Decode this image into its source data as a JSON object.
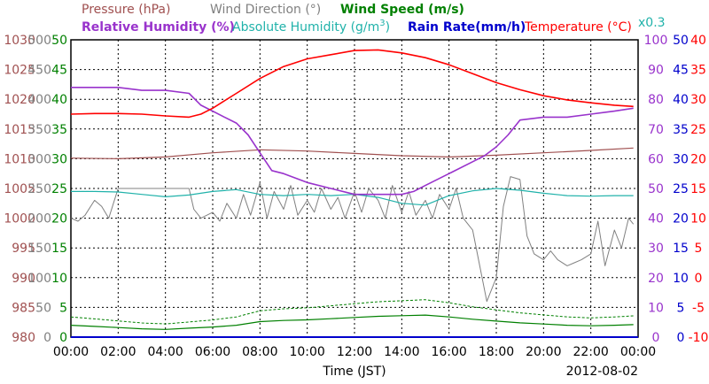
{
  "chart_data": {
    "type": "line",
    "date": "2012-08-02",
    "xlabel": "Time (JST)",
    "x_ticks": [
      "00:00",
      "02:00",
      "04:00",
      "06:00",
      "08:00",
      "10:00",
      "12:00",
      "14:00",
      "16:00",
      "18:00",
      "20:00",
      "22:00",
      "00:00"
    ],
    "x_range_hours": [
      0,
      24
    ],
    "grid": true,
    "legend": {
      "pressure": "Pressure (hPa)",
      "wind_direction": "Wind Direction (°)",
      "wind_speed": "Wind Speed (m/s)",
      "relative_humidity": "Relative Humidity (%)",
      "absolute_humidity": "Absolute Humidity (g/m",
      "absolute_humidity_sup": "3",
      "absolute_humidity_close": ")",
      "rain_rate": "Rain Rate(mm/h)",
      "temperature": "Temperature (°C)",
      "scale_note": "x0.3"
    },
    "axes": {
      "pressure": {
        "ticks": [
          "1030",
          "1025",
          "1020",
          "1015",
          "1010",
          "1005",
          "1000",
          "995",
          "990",
          "985",
          "980"
        ],
        "range": [
          980,
          1030
        ],
        "color": "#a05050"
      },
      "wind_direction": {
        "ticks": [
          "500",
          "450",
          "400",
          "350",
          "300",
          "250",
          "200",
          "150",
          "100",
          "50",
          "0"
        ],
        "range": [
          0,
          500
        ],
        "color": "#808080"
      },
      "wind_speed": {
        "ticks": [
          "50",
          "45",
          "40",
          "35",
          "30",
          "25",
          "20",
          "15",
          "10",
          "5",
          "0"
        ],
        "range": [
          0,
          50
        ],
        "color": "#008000"
      },
      "relative_humidity": {
        "ticks": [
          "100",
          "90",
          "80",
          "70",
          "60",
          "50",
          "40",
          "30",
          "20",
          "10",
          "0"
        ],
        "range": [
          0,
          100
        ],
        "color": "#9933cc"
      },
      "rain_rate": {
        "ticks": [
          "50",
          "45",
          "40",
          "35",
          "30",
          "25",
          "20",
          "15",
          "10",
          "5",
          "0"
        ],
        "range": [
          0,
          50
        ],
        "color": "#0000cc"
      },
      "temperature": {
        "ticks": [
          "40",
          "35",
          "30",
          "25",
          "20",
          "15",
          "10",
          "5",
          "0",
          "-5",
          "-10"
        ],
        "range": [
          -10,
          40
        ],
        "color": "#ff0000"
      }
    },
    "series": [
      {
        "name": "Temperature (°C)",
        "color": "#ff0000",
        "x": [
          0,
          1,
          2,
          3,
          4,
          5,
          5.5,
          6,
          7,
          8,
          9,
          10,
          11,
          12,
          13,
          14,
          15,
          16,
          17,
          18,
          19,
          20,
          21,
          22,
          23,
          23.8
        ],
        "values": [
          27.5,
          27.6,
          27.6,
          27.5,
          27.2,
          27.0,
          27.5,
          28.5,
          31,
          33.5,
          35.5,
          36.8,
          37.5,
          38.2,
          38.3,
          37.8,
          37,
          35.8,
          34.3,
          32.8,
          31.6,
          30.6,
          29.9,
          29.4,
          29.0,
          28.8
        ]
      },
      {
        "name": "Relative Humidity (%)",
        "color": "#9933cc",
        "x": [
          0,
          1,
          2,
          3,
          4,
          5,
          5.5,
          6,
          6.5,
          7,
          7.5,
          8,
          8.5,
          9,
          10,
          11,
          12,
          13,
          14,
          14.5,
          15,
          16,
          17,
          17.5,
          18,
          18.5,
          19,
          20,
          21,
          22,
          23,
          23.8
        ],
        "values": [
          84,
          84,
          84,
          83,
          83,
          82,
          78,
          76,
          74,
          72,
          68,
          62,
          56,
          55,
          52,
          50,
          48,
          48,
          48,
          49,
          51,
          55,
          59,
          61,
          64,
          68,
          73,
          74,
          74,
          75,
          76,
          77
        ]
      },
      {
        "name": "Absolute Humidity (g/m3)",
        "color": "#20b2aa",
        "x": [
          0,
          1,
          2,
          3,
          4,
          5,
          6,
          7,
          8,
          9,
          10,
          11,
          12,
          13,
          14,
          15,
          16,
          17,
          18,
          19,
          20,
          21,
          22,
          23,
          23.8
        ],
        "values": [
          24.5,
          24.5,
          24.4,
          24.0,
          23.6,
          23.9,
          24.5,
          24.8,
          24.0,
          23.8,
          24.0,
          23.8,
          24.0,
          23.5,
          22.5,
          22.2,
          23.8,
          24.6,
          25,
          24.7,
          24.2,
          23.8,
          23.7,
          23.8,
          23.8
        ]
      },
      {
        "name": "Pressure (hPa)",
        "color": "#a05050",
        "x": [
          0,
          2,
          4,
          6,
          8,
          10,
          12,
          14,
          16,
          18,
          20,
          22,
          23.8
        ],
        "values": [
          1010.1,
          1010.0,
          1010.3,
          1011.0,
          1011.5,
          1011.3,
          1010.9,
          1010.5,
          1010.3,
          1010.6,
          1011.0,
          1011.4,
          1011.8
        ]
      },
      {
        "name": "Wind Direction (°)",
        "color": "#808080",
        "x": [
          0,
          0.3,
          0.6,
          1,
          1.3,
          1.6,
          2,
          3,
          4,
          5,
          5.2,
          5.5,
          6,
          6.3,
          6.6,
          7,
          7.3,
          7.6,
          8,
          8.3,
          8.6,
          9,
          9.3,
          9.6,
          10,
          10.3,
          10.6,
          11,
          11.3,
          11.6,
          12,
          12.3,
          12.6,
          13,
          13.3,
          13.6,
          14,
          14.3,
          14.6,
          15,
          15.3,
          15.6,
          16,
          16.3,
          16.6,
          17,
          17.3,
          17.6,
          18,
          18.3,
          18.6,
          19,
          19.3,
          19.6,
          20,
          20.3,
          20.6,
          21,
          21.3,
          21.6,
          22,
          22.3,
          22.6,
          23,
          23.3,
          23.6,
          23.8
        ],
        "values": [
          200,
          195,
          205,
          230,
          220,
          200,
          250,
          250,
          250,
          250,
          215,
          200,
          210,
          195,
          225,
          200,
          240,
          205,
          260,
          200,
          245,
          215,
          255,
          205,
          230,
          210,
          250,
          215,
          235,
          200,
          245,
          210,
          250,
          230,
          200,
          255,
          210,
          245,
          205,
          230,
          200,
          240,
          215,
          250,
          200,
          180,
          120,
          60,
          100,
          220,
          270,
          265,
          170,
          140,
          130,
          145,
          130,
          120,
          125,
          130,
          140,
          195,
          120,
          180,
          150,
          200,
          190
        ]
      },
      {
        "name": "Wind Speed (m/s)",
        "color": "#008000",
        "x": [
          0,
          1,
          2,
          3,
          4,
          5,
          6,
          7,
          8,
          9,
          10,
          11,
          12,
          13,
          14,
          15,
          16,
          17,
          18,
          19,
          20,
          21,
          22,
          23,
          23.8
        ],
        "values": [
          2.0,
          1.8,
          1.6,
          1.4,
          1.3,
          1.5,
          1.7,
          2.0,
          2.6,
          2.8,
          2.9,
          3.1,
          3.3,
          3.5,
          3.6,
          3.7,
          3.4,
          3.0,
          2.7,
          2.4,
          2.2,
          2.0,
          1.9,
          2.0,
          2.1
        ]
      },
      {
        "name": "Rain Rate(mm/h)",
        "color": "#0000cc",
        "x": [
          0,
          24
        ],
        "values": [
          0,
          0
        ]
      }
    ]
  }
}
